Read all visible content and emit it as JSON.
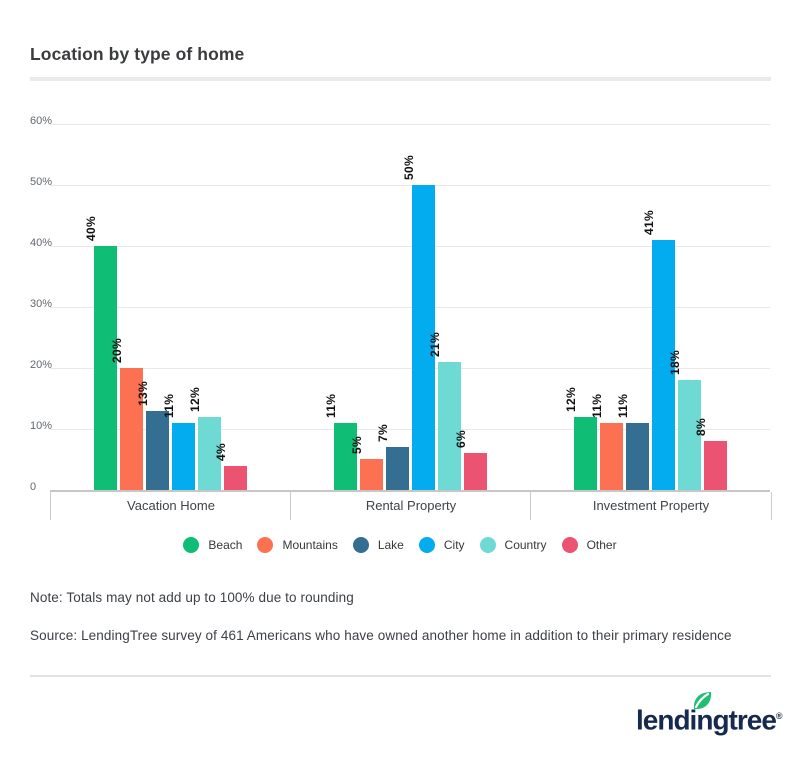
{
  "title": "Location by type of home",
  "chart_data": {
    "type": "bar",
    "categories": [
      "Vacation Home",
      "Rental Property",
      "Investment Property"
    ],
    "series": [
      {
        "name": "Beach",
        "color": "#10bd74",
        "values": [
          40,
          11,
          12
        ]
      },
      {
        "name": "Mountains",
        "color": "#fc7152",
        "values": [
          20,
          5,
          11
        ]
      },
      {
        "name": "Lake",
        "color": "#346f92",
        "values": [
          13,
          7,
          11
        ]
      },
      {
        "name": "City",
        "color": "#03acee",
        "values": [
          11,
          50,
          41
        ]
      },
      {
        "name": "Country",
        "color": "#6edad3",
        "values": [
          12,
          21,
          18
        ]
      },
      {
        "name": "Other",
        "color": "#eb5370",
        "values": [
          4,
          6,
          8
        ]
      }
    ],
    "value_suffix": "%",
    "y_ticks": [
      "60%",
      "50%",
      "40%",
      "30%",
      "20%",
      "10%",
      "0"
    ],
    "ylim": [
      0,
      60
    ],
    "grid": true,
    "legend_position": "bottom",
    "bar_label_rotation": -90
  },
  "notes": {
    "note": "Note: Totals may not add up to 100% due to rounding",
    "source": "Source: LendingTree survey of 461 Americans who have owned another home in addition to their primary residence"
  },
  "footer": {
    "brand": "lendingtree",
    "registered": "®",
    "leaf_icon_color": "#21be72",
    "wordmark_color": "#152a4e"
  }
}
